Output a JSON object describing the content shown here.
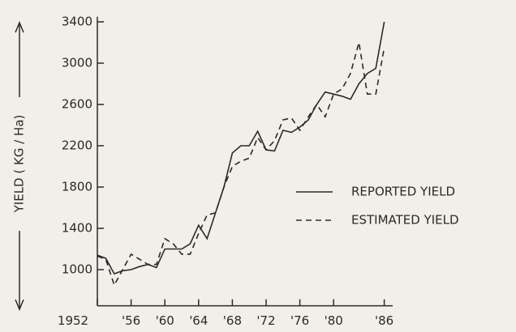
{
  "chart_data": {
    "type": "line",
    "y_label": "YIELD ( KG / Ha)",
    "x": [
      1952,
      1953,
      1954,
      1955,
      1956,
      1957,
      1958,
      1959,
      1960,
      1961,
      1962,
      1963,
      1964,
      1965,
      1966,
      1967,
      1968,
      1969,
      1970,
      1971,
      1972,
      1973,
      1974,
      1975,
      1976,
      1977,
      1978,
      1979,
      1980,
      1981,
      1982,
      1983,
      1984,
      1985,
      1986
    ],
    "series": [
      {
        "name": "REPORTED YIELD",
        "color": "#2a2a2a",
        "line_style": "solid",
        "values": [
          1140,
          1110,
          960,
          990,
          1000,
          1030,
          1050,
          1020,
          1200,
          1200,
          1200,
          1250,
          1430,
          1300,
          1550,
          1800,
          2130,
          2200,
          2200,
          2340,
          2160,
          2150,
          2350,
          2330,
          2380,
          2450,
          2600,
          2720,
          2700,
          2680,
          2650,
          2800,
          2900,
          2950,
          3400
        ]
      },
      {
        "name": "ESTIMATED YIELD",
        "color": "#2a2a2a",
        "line_style": "dashed",
        "values": [
          1130,
          1100,
          850,
          1000,
          1150,
          1100,
          1050,
          1050,
          1300,
          1250,
          1150,
          1150,
          1350,
          1530,
          1550,
          1800,
          2000,
          2050,
          2080,
          2280,
          2160,
          2250,
          2450,
          2470,
          2350,
          2480,
          2600,
          2480,
          2700,
          2750,
          2900,
          3200,
          2700,
          2700,
          3150
        ]
      }
    ],
    "xlim": [
      1952,
      1987
    ],
    "xticks": [
      {
        "value": 1952,
        "label": "1952"
      },
      {
        "value": 1956,
        "label": "'56"
      },
      {
        "value": 1960,
        "label": "'60"
      },
      {
        "value": 1964,
        "label": "'64"
      },
      {
        "value": 1968,
        "label": "'68"
      },
      {
        "value": 1972,
        "label": "'72"
      },
      {
        "value": 1976,
        "label": "'76"
      },
      {
        "value": 1980,
        "label": "'80"
      },
      {
        "value": 1986,
        "label": "'86"
      }
    ],
    "ylim": [
      650,
      3450
    ],
    "yticks": [
      1000,
      1400,
      1800,
      2200,
      2600,
      3000,
      3400
    ],
    "grid": false
  }
}
